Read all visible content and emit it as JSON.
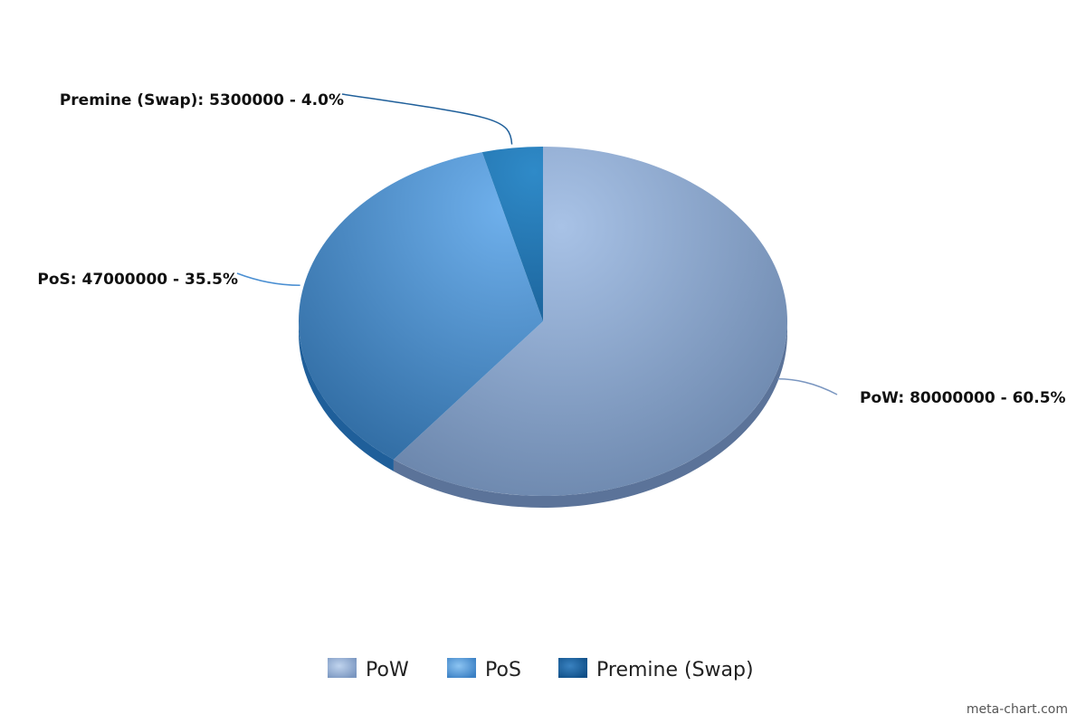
{
  "chart_data": {
    "type": "pie",
    "style": "3d",
    "title": "",
    "slices": [
      {
        "label": "PoW",
        "value": 80000000,
        "percent": 60.5,
        "color": "#7a96c0",
        "data_label": "PoW: 80000000 - 60.5%"
      },
      {
        "label": "PoS",
        "value": 47000000,
        "percent": 35.5,
        "color": "#4a8fd2",
        "data_label": "PoS: 47000000 - 35.5%"
      },
      {
        "label": "Premine (Swap)",
        "value": 5300000,
        "percent": 4.0,
        "color": "#1f6ead",
        "data_label": "Premine (Swap): 5300000 - 4.0%"
      }
    ],
    "legend": {
      "position": "bottom",
      "entries": [
        "PoW",
        "PoS",
        "Premine (Swap)"
      ]
    }
  },
  "credit": "meta-chart.com"
}
